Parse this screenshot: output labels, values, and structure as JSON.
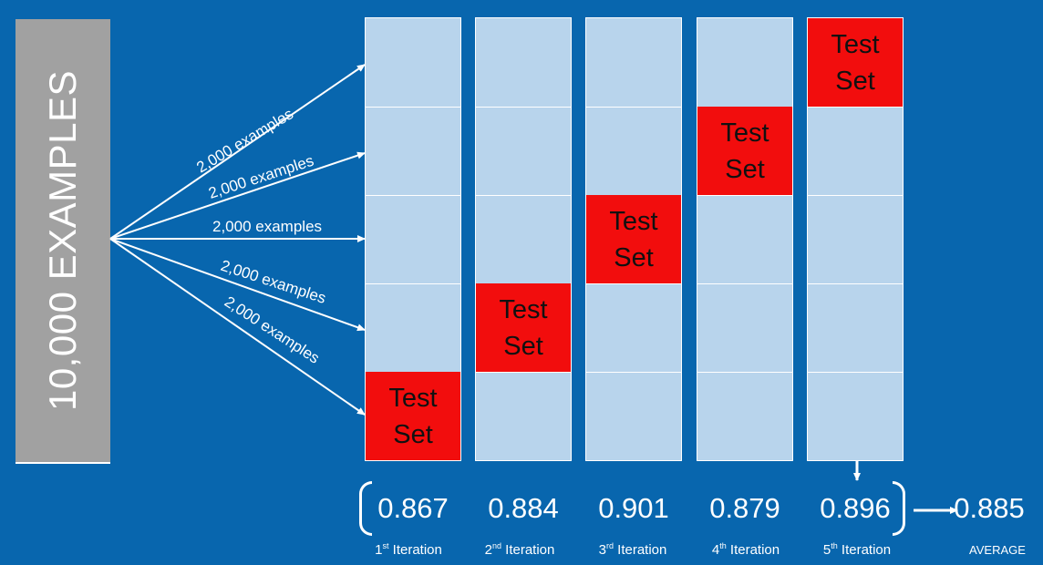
{
  "dataset": {
    "label": "10,000 EXAMPLES"
  },
  "split_label": "2,000 examples",
  "folds": [
    {
      "test_label": "Test\nSet",
      "score": "0.867",
      "ordinal": "1",
      "suffix": "st",
      "iteration_word": "Iteration"
    },
    {
      "test_label": "Test\nSet",
      "score": "0.884",
      "ordinal": "2",
      "suffix": "nd",
      "iteration_word": "Iteration"
    },
    {
      "test_label": "Test\nSet",
      "score": "0.901",
      "ordinal": "3",
      "suffix": "rd",
      "iteration_word": "Iteration"
    },
    {
      "test_label": "Test\nSet",
      "score": "0.879",
      "ordinal": "4",
      "suffix": "th",
      "iteration_word": "Iteration"
    },
    {
      "test_label": "Test\nSet",
      "score": "0.896",
      "ordinal": "5",
      "suffix": "th",
      "iteration_word": "Iteration"
    }
  ],
  "average": {
    "score": "0.885",
    "label": "AVERAGE"
  },
  "colors": {
    "background": "#0866AE",
    "dataset_block": "#A1A1A1",
    "fold_cell": "#B8D4EC",
    "test_set": "#F20D0D",
    "lines": "#FFFFFF"
  }
}
